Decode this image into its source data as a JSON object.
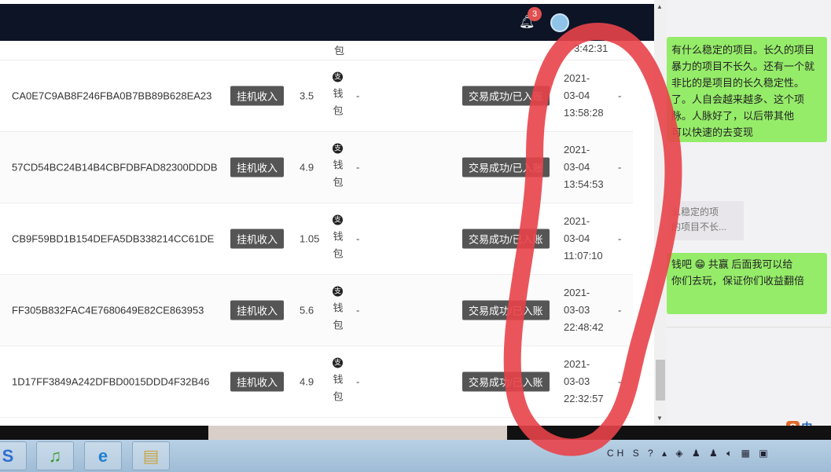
{
  "header": {
    "notification_count": "3"
  },
  "partial_row": {
    "wallet_fragment": "包",
    "time_fragment": "3:42:31"
  },
  "rows": [
    {
      "id": "CA0E7C9AB8F246FBA0B7BB89B628EA23",
      "type": "挂机收入",
      "amount": "3.5",
      "wallet": [
        "钱",
        "包"
      ],
      "remark": "-",
      "status": "交易成功/已入账",
      "date": "2021-",
      "date2": "03-04",
      "time": "13:58:28",
      "extra": "-"
    },
    {
      "id": "57CD54BC24B14B4CBFDBFAD82300DDDB",
      "type": "挂机收入",
      "amount": "4.9",
      "wallet": [
        "钱",
        "包"
      ],
      "remark": "-",
      "status": "交易成功/已入账",
      "date": "2021-",
      "date2": "03-04",
      "time": "13:54:53",
      "extra": "-"
    },
    {
      "id": "CB9F59BD1B154DEFA5DB338214CC61DE",
      "type": "挂机收入",
      "amount": "1.05",
      "wallet": [
        "钱",
        "包"
      ],
      "remark": "-",
      "status": "交易成功/已入账",
      "date": "2021-",
      "date2": "03-04",
      "time": "11:07:10",
      "extra": "-"
    },
    {
      "id": "FF305B832FAC4E7680649E82CE863953",
      "type": "挂机收入",
      "amount": "5.6",
      "wallet": [
        "钱",
        "包"
      ],
      "remark": "-",
      "status": "交易成功/已入账",
      "date": "2021-",
      "date2": "03-03",
      "time": "22:48:42",
      "extra": "-"
    },
    {
      "id": "1D17FF3849A242DFBD0015DDD4F32B46",
      "type": "挂机收入",
      "amount": "4.9",
      "wallet": [
        "钱",
        "包"
      ],
      "remark": "-",
      "status": "交易成功/已入账",
      "date": "2021-",
      "date2": "03-03",
      "time": "22:32:57",
      "extra": "-"
    }
  ],
  "wallet_icon_glyph": "支",
  "chat": {
    "bubble1": [
      "有什么稳定的项目。长久的项目",
      "暴力的项目不长久。还有一个就",
      "非比的是项目的长久稳定性。",
      "了。人自会越来越多、这个项",
      "脉。人脉好了，以后带其他",
      "可以快速的去变现"
    ],
    "quote": [
      "么稳定的项",
      "的项目不长..."
    ],
    "bubble2": [
      "钱吧 😁 共赢 后面我可以给",
      "你们去玩，保证你们收益翻倍"
    ]
  },
  "ime": {
    "logo": "S",
    "mode": "中"
  },
  "tray": {
    "lang": "CH"
  },
  "colors": {
    "header": "#0c1426",
    "tag": "#555555",
    "chat_green": "#95ec69",
    "annotation_red": "#e8434a"
  }
}
